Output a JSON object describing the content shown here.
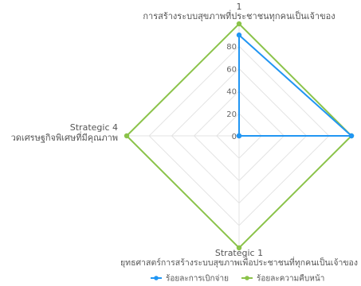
{
  "chart_data": {
    "type": "radar",
    "axes": [
      {
        "label_line1": "1",
        "label_line2": "การสร้างระบบสุขภาพที่ประชาชนทุกคนเป็นเจ้าของ"
      },
      {
        "label_line1": "",
        "label_line2": ""
      },
      {
        "label_line1": "Strategic 1",
        "label_line2": "ยุทธศาสตร์การสร้างระบบสุขภาพเพื่อประชาชนที่ทุกคนเป็นเจ้าของ"
      },
      {
        "label_line1": "Strategic 4",
        "label_line2": "วดเศรษฐกิจพิเศษที่มีคุณภาพ"
      }
    ],
    "r_range": [
      0,
      100
    ],
    "r_ticks": [
      0,
      20,
      40,
      60,
      80
    ],
    "grid": true,
    "legend_position": "bottom",
    "series": [
      {
        "name": "ร้อยละการเบิกจ่าย",
        "color": "#2196f3",
        "values": [
          90,
          100,
          0,
          0
        ]
      },
      {
        "name": "ร้อยละความคืบหน้า",
        "color": "#8bc34a",
        "values": [
          100,
          100,
          100,
          100
        ]
      }
    ]
  }
}
